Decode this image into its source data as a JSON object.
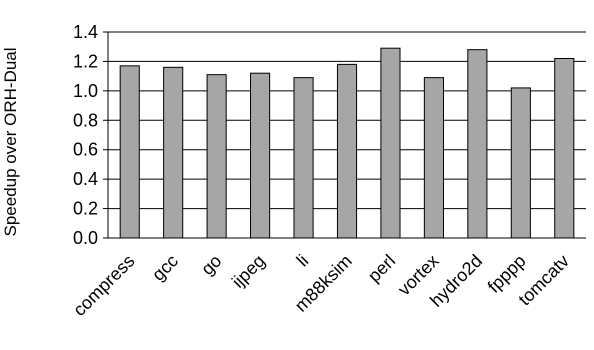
{
  "chart_data": {
    "type": "bar",
    "ylabel": "Speedup over ORH-Dual",
    "xlabel": "",
    "ylim": [
      0.0,
      1.4
    ],
    "yticks": [
      "0.0",
      "0.2",
      "0.4",
      "0.6",
      "0.8",
      "1.0",
      "1.2",
      "1.4"
    ],
    "grid": true,
    "categories": [
      "compress",
      "gcc",
      "go",
      "ijpeg",
      "li",
      "m88ksim",
      "perl",
      "vortex",
      "hydro2d",
      "fpppp",
      "tomcatv"
    ],
    "values": [
      1.17,
      1.16,
      1.11,
      1.12,
      1.09,
      1.18,
      1.29,
      1.09,
      1.28,
      1.02,
      1.22
    ],
    "colors": {
      "bar": "#a6a6a6",
      "bar_stroke": "#000000",
      "grid": "#000000"
    }
  }
}
